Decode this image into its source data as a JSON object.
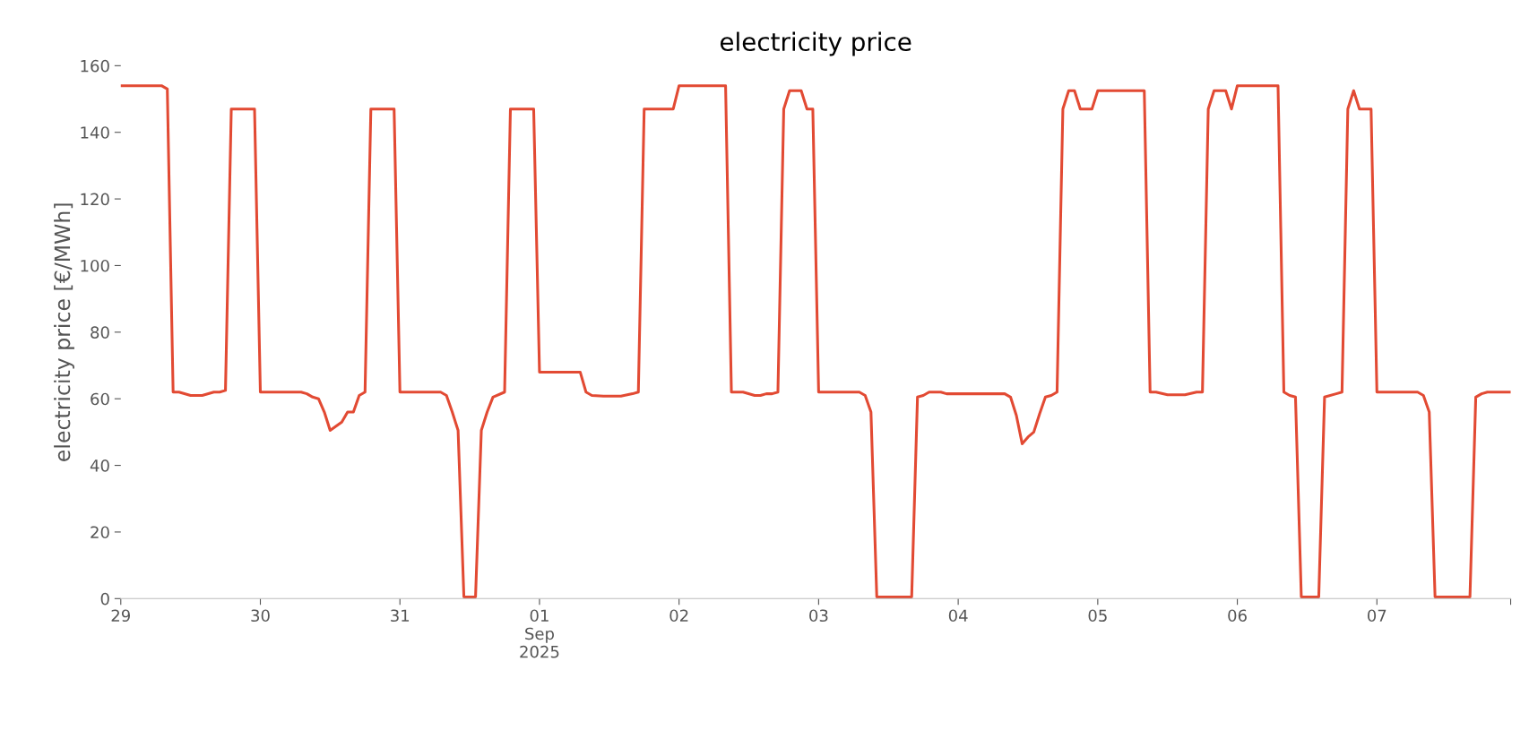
{
  "chart_data": {
    "type": "line",
    "title": "electricity price",
    "ylabel": "electricity price [€/MWh]",
    "x": [
      "2025-08-29T00:00",
      "2025-08-29T07:00",
      "2025-08-29T08:00",
      "2025-08-29T09:00",
      "2025-08-29T10:00",
      "2025-08-29T12:00",
      "2025-08-29T14:00",
      "2025-08-29T16:00",
      "2025-08-29T17:00",
      "2025-08-29T18:00",
      "2025-08-29T19:00",
      "2025-08-29T23:00",
      "2025-08-30T00:00",
      "2025-08-30T07:00",
      "2025-08-30T08:00",
      "2025-08-30T09:00",
      "2025-08-30T10:00",
      "2025-08-30T11:00",
      "2025-08-30T12:00",
      "2025-08-30T14:00",
      "2025-08-30T15:00",
      "2025-08-30T16:00",
      "2025-08-30T17:00",
      "2025-08-30T18:00",
      "2025-08-30T19:00",
      "2025-08-30T23:00",
      "2025-08-31T00:00",
      "2025-08-31T07:00",
      "2025-08-31T08:00",
      "2025-08-31T09:00",
      "2025-08-31T10:00",
      "2025-08-31T11:00",
      "2025-08-31T13:00",
      "2025-08-31T14:00",
      "2025-08-31T15:00",
      "2025-08-31T16:00",
      "2025-08-31T18:00",
      "2025-08-31T19:00",
      "2025-08-31T23:00",
      "2025-09-01T00:00",
      "2025-09-01T07:00",
      "2025-09-01T08:00",
      "2025-09-01T09:00",
      "2025-09-01T11:00",
      "2025-09-01T14:00",
      "2025-09-01T16:00",
      "2025-09-01T17:00",
      "2025-09-01T18:00",
      "2025-09-01T23:00",
      "2025-09-02T00:00",
      "2025-09-02T08:00",
      "2025-09-02T09:00",
      "2025-09-02T11:00",
      "2025-09-02T13:00",
      "2025-09-02T14:00",
      "2025-09-02T15:00",
      "2025-09-02T16:00",
      "2025-09-02T17:00",
      "2025-09-02T18:00",
      "2025-09-02T19:00",
      "2025-09-02T21:00",
      "2025-09-02T22:00",
      "2025-09-02T23:00",
      "2025-09-03T00:00",
      "2025-09-03T07:00",
      "2025-09-03T08:00",
      "2025-09-03T09:00",
      "2025-09-03T10:00",
      "2025-09-03T16:00",
      "2025-09-03T17:00",
      "2025-09-03T18:00",
      "2025-09-03T19:00",
      "2025-09-03T21:00",
      "2025-09-03T22:00",
      "2025-09-04T08:00",
      "2025-09-04T09:00",
      "2025-09-04T10:00",
      "2025-09-04T11:00",
      "2025-09-04T12:00",
      "2025-09-04T13:00",
      "2025-09-04T14:00",
      "2025-09-04T15:00",
      "2025-09-04T16:00",
      "2025-09-04T17:00",
      "2025-09-04T18:00",
      "2025-09-04T19:00",
      "2025-09-04T20:00",
      "2025-09-04T21:00",
      "2025-09-04T23:00",
      "2025-09-05T00:00",
      "2025-09-05T08:00",
      "2025-09-05T09:00",
      "2025-09-05T10:00",
      "2025-09-05T12:00",
      "2025-09-05T15:00",
      "2025-09-05T17:00",
      "2025-09-05T18:00",
      "2025-09-05T19:00",
      "2025-09-05T20:00",
      "2025-09-05T22:00",
      "2025-09-05T23:00",
      "2025-09-06T00:00",
      "2025-09-06T07:00",
      "2025-09-06T08:00",
      "2025-09-06T09:00",
      "2025-09-06T10:00",
      "2025-09-06T11:00",
      "2025-09-06T14:00",
      "2025-09-06T15:00",
      "2025-09-06T17:00",
      "2025-09-06T18:00",
      "2025-09-06T19:00",
      "2025-09-06T20:00",
      "2025-09-06T21:00",
      "2025-09-06T23:00",
      "2025-09-07T00:00",
      "2025-09-07T07:00",
      "2025-09-07T08:00",
      "2025-09-07T09:00",
      "2025-09-07T10:00",
      "2025-09-07T16:00",
      "2025-09-07T17:00",
      "2025-09-07T18:00",
      "2025-09-07T19:00",
      "2025-09-07T23:00"
    ],
    "series": [
      {
        "color": "#e24a33",
        "values": [
          154,
          154,
          153,
          62,
          62,
          61,
          61,
          62,
          62,
          62.5,
          147,
          147,
          62,
          62,
          61.5,
          60.5,
          60,
          56,
          50.5,
          53,
          56,
          56,
          61,
          62,
          147,
          147,
          62,
          62,
          61,
          56,
          50.5,
          0.5,
          0.5,
          50.5,
          56,
          60.5,
          62,
          147,
          147,
          68,
          68,
          62,
          61,
          60.8,
          60.8,
          61.5,
          62,
          147,
          147,
          154,
          154,
          62,
          62,
          61,
          61,
          61.5,
          61.5,
          62,
          147,
          152.5,
          152.5,
          147,
          147,
          62,
          62,
          61,
          56,
          0.5,
          0.5,
          60.5,
          61,
          62,
          62,
          61.5,
          61.5,
          60.5,
          55,
          46.5,
          48.5,
          50,
          55.5,
          60.5,
          61,
          62,
          147,
          152.5,
          152.5,
          147,
          147,
          152.5,
          152.5,
          62,
          62,
          61.2,
          61.2,
          62,
          62,
          147,
          152.5,
          152.5,
          147,
          154,
          154,
          62,
          61,
          60.5,
          0.5,
          0.5,
          60.5,
          61.5,
          62,
          147,
          152.5,
          147,
          147,
          62,
          62,
          61,
          56,
          0.5,
          0.5,
          60.5,
          61.5,
          62,
          62
        ]
      }
    ],
    "xlim": [
      "2025-08-29T00:00",
      "2025-09-07T23:00"
    ],
    "xticks": [
      {
        "value": "2025-08-29",
        "label": "29"
      },
      {
        "value": "2025-08-30",
        "label": "30"
      },
      {
        "value": "2025-08-31",
        "label": "31"
      },
      {
        "value": "2025-09-01",
        "label": "01\nSep\n2025"
      },
      {
        "value": "2025-09-02",
        "label": "02"
      },
      {
        "value": "2025-09-03",
        "label": "03"
      },
      {
        "value": "2025-09-04",
        "label": "04"
      },
      {
        "value": "2025-09-05",
        "label": "05"
      },
      {
        "value": "2025-09-06",
        "label": "06"
      },
      {
        "value": "2025-09-07",
        "label": "07"
      },
      {
        "value": "2025-09-07T23:00",
        "label": null
      }
    ],
    "ylim": [
      0,
      160
    ],
    "yticks": [
      0,
      20,
      40,
      60,
      80,
      100,
      120,
      140,
      160
    ],
    "grid": false,
    "legend": false,
    "line_style": "solid",
    "marker": "none"
  }
}
